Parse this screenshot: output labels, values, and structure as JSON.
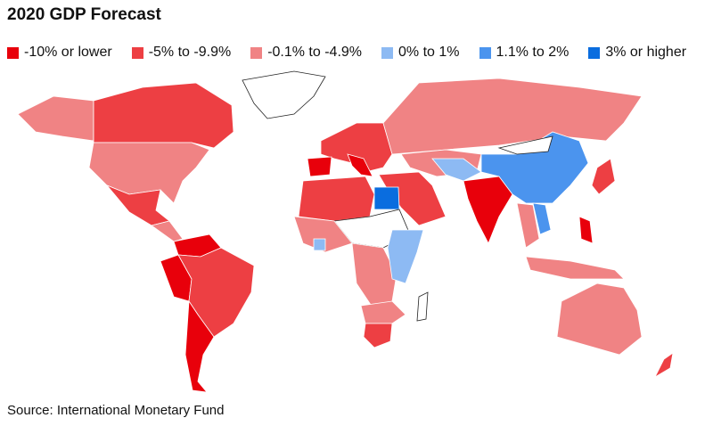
{
  "title": "2020 GDP Forecast",
  "legend": [
    {
      "label": "-10% or lower",
      "color": "#e8000b"
    },
    {
      "label": "-5% to -9.9%",
      "color": "#ed3f43"
    },
    {
      "label": "-0.1% to -4.9%",
      "color": "#f08384"
    },
    {
      "label": "0% to 1%",
      "color": "#8dbaf3"
    },
    {
      "label": "1.1% to 2%",
      "color": "#4b94ee"
    },
    {
      "label": "3% or higher",
      "color": "#0a6ddf"
    }
  ],
  "source": "Source: International Monetary Fund"
}
